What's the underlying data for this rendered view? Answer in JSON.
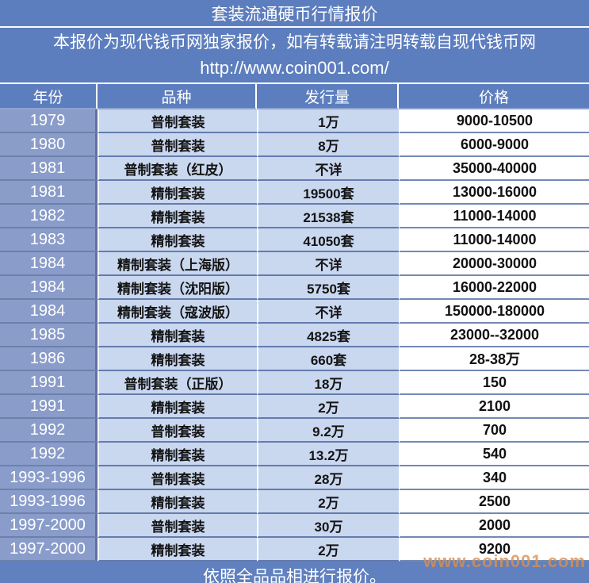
{
  "title": "套装流通硬币行情报价",
  "subtitle": {
    "line1": "本报价为现代钱币网独家报价，如有转载请注明转载自现代钱币网",
    "line2": "http://www.coin001.com/"
  },
  "table": {
    "headers": [
      "年份",
      "品种",
      "发行量",
      "价格"
    ],
    "rows": [
      {
        "year": "1979",
        "variety": "普制套装",
        "mintage": "1万",
        "price": "9000-10500"
      },
      {
        "year": "1980",
        "variety": "普制套装",
        "mintage": "8万",
        "price": "6000-9000"
      },
      {
        "year": "1981",
        "variety": "普制套装（红皮）",
        "mintage": "不详",
        "price": "35000-40000"
      },
      {
        "year": "1981",
        "variety": "精制套装",
        "mintage": "19500套",
        "price": "13000-16000"
      },
      {
        "year": "1982",
        "variety": "精制套装",
        "mintage": "21538套",
        "price": "11000-14000"
      },
      {
        "year": "1983",
        "variety": "精制套装",
        "mintage": "41050套",
        "price": "11000-14000"
      },
      {
        "year": "1984",
        "variety": "精制套装（上海版）",
        "mintage": "不详",
        "price": "20000-30000"
      },
      {
        "year": "1984",
        "variety": "精制套装（沈阳版）",
        "mintage": "5750套",
        "price": "16000-22000"
      },
      {
        "year": "1984",
        "variety": "精制套装（寇波版）",
        "mintage": "不详",
        "price": "150000-180000"
      },
      {
        "year": "1985",
        "variety": "精制套装",
        "mintage": "4825套",
        "price": "23000--32000"
      },
      {
        "year": "1986",
        "variety": "精制套装",
        "mintage": "660套",
        "price": "28-38万"
      },
      {
        "year": "1991",
        "variety": "普制套装（正版）",
        "mintage": "18万",
        "price": "150"
      },
      {
        "year": "1991",
        "variety": "精制套装",
        "mintage": "2万",
        "price": "2100"
      },
      {
        "year": "1992",
        "variety": "普制套装",
        "mintage": "9.2万",
        "price": "700"
      },
      {
        "year": "1992",
        "variety": "精制套装",
        "mintage": "13.2万",
        "price": "540"
      },
      {
        "year": "1993-1996",
        "variety": "普制套装",
        "mintage": "28万",
        "price": "340"
      },
      {
        "year": "1993-1996",
        "variety": "精制套装",
        "mintage": "2万",
        "price": "2500"
      },
      {
        "year": "1997-2000",
        "variety": "普制套装",
        "mintage": "30万",
        "price": "2000"
      },
      {
        "year": "1997-2000",
        "variety": "精制套装",
        "mintage": "2万",
        "price": "9200"
      }
    ]
  },
  "footer": "依照全品品相进行报价。",
  "watermark": "www.coin001.com",
  "colors": {
    "band_blue": "#5d7ebe",
    "year_cell_blue": "#8a9cca",
    "light_cell_blue": "#c9d7ef",
    "price_cell_white": "#ffffff",
    "watermark_orange": "#d98f52"
  }
}
